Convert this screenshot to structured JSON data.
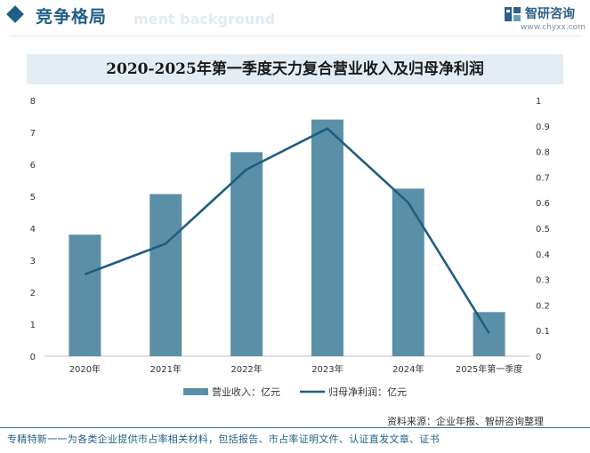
{
  "header": {
    "section_title": "竞争格局",
    "bg_word": "ment background",
    "brand": "智研咨询",
    "url": "www.chyxx.com"
  },
  "chart_data": {
    "type": "bar+line",
    "title": "2020-2025年第一季度天力复合营业收入及归母净利润",
    "categories": [
      "2020年",
      "2021年",
      "2022年",
      "2023年",
      "2024年",
      "2025年第一季度"
    ],
    "series": [
      {
        "name": "营业收入：亿元",
        "type": "bar",
        "axis": "left",
        "color": "#5b8fa8",
        "values": [
          3.8,
          5.07,
          6.38,
          7.4,
          5.24,
          1.38
        ]
      },
      {
        "name": "归母净利润：亿元",
        "type": "line",
        "axis": "right",
        "color": "#1d5e80",
        "values": [
          0.32,
          0.44,
          0.73,
          0.89,
          0.6,
          0.09
        ]
      }
    ],
    "left_ticks": [
      "0",
      "1",
      "2",
      "3",
      "4",
      "5",
      "6",
      "7",
      "8"
    ],
    "right_ticks": [
      "0",
      "0.1",
      "0.2",
      "0.3",
      "0.4",
      "0.5",
      "0.6",
      "0.7",
      "0.8",
      "0.9",
      "1"
    ],
    "ylim_left": [
      0,
      8
    ],
    "ylim_right": [
      0,
      1
    ],
    "legend_position": "bottom"
  },
  "source": "资料来源：企业年报、智研咨询整理",
  "footer": "专精特新一一为各类企业提供市占率相关材料，包括报告、市占率证明文件、认证直发文章、证书"
}
